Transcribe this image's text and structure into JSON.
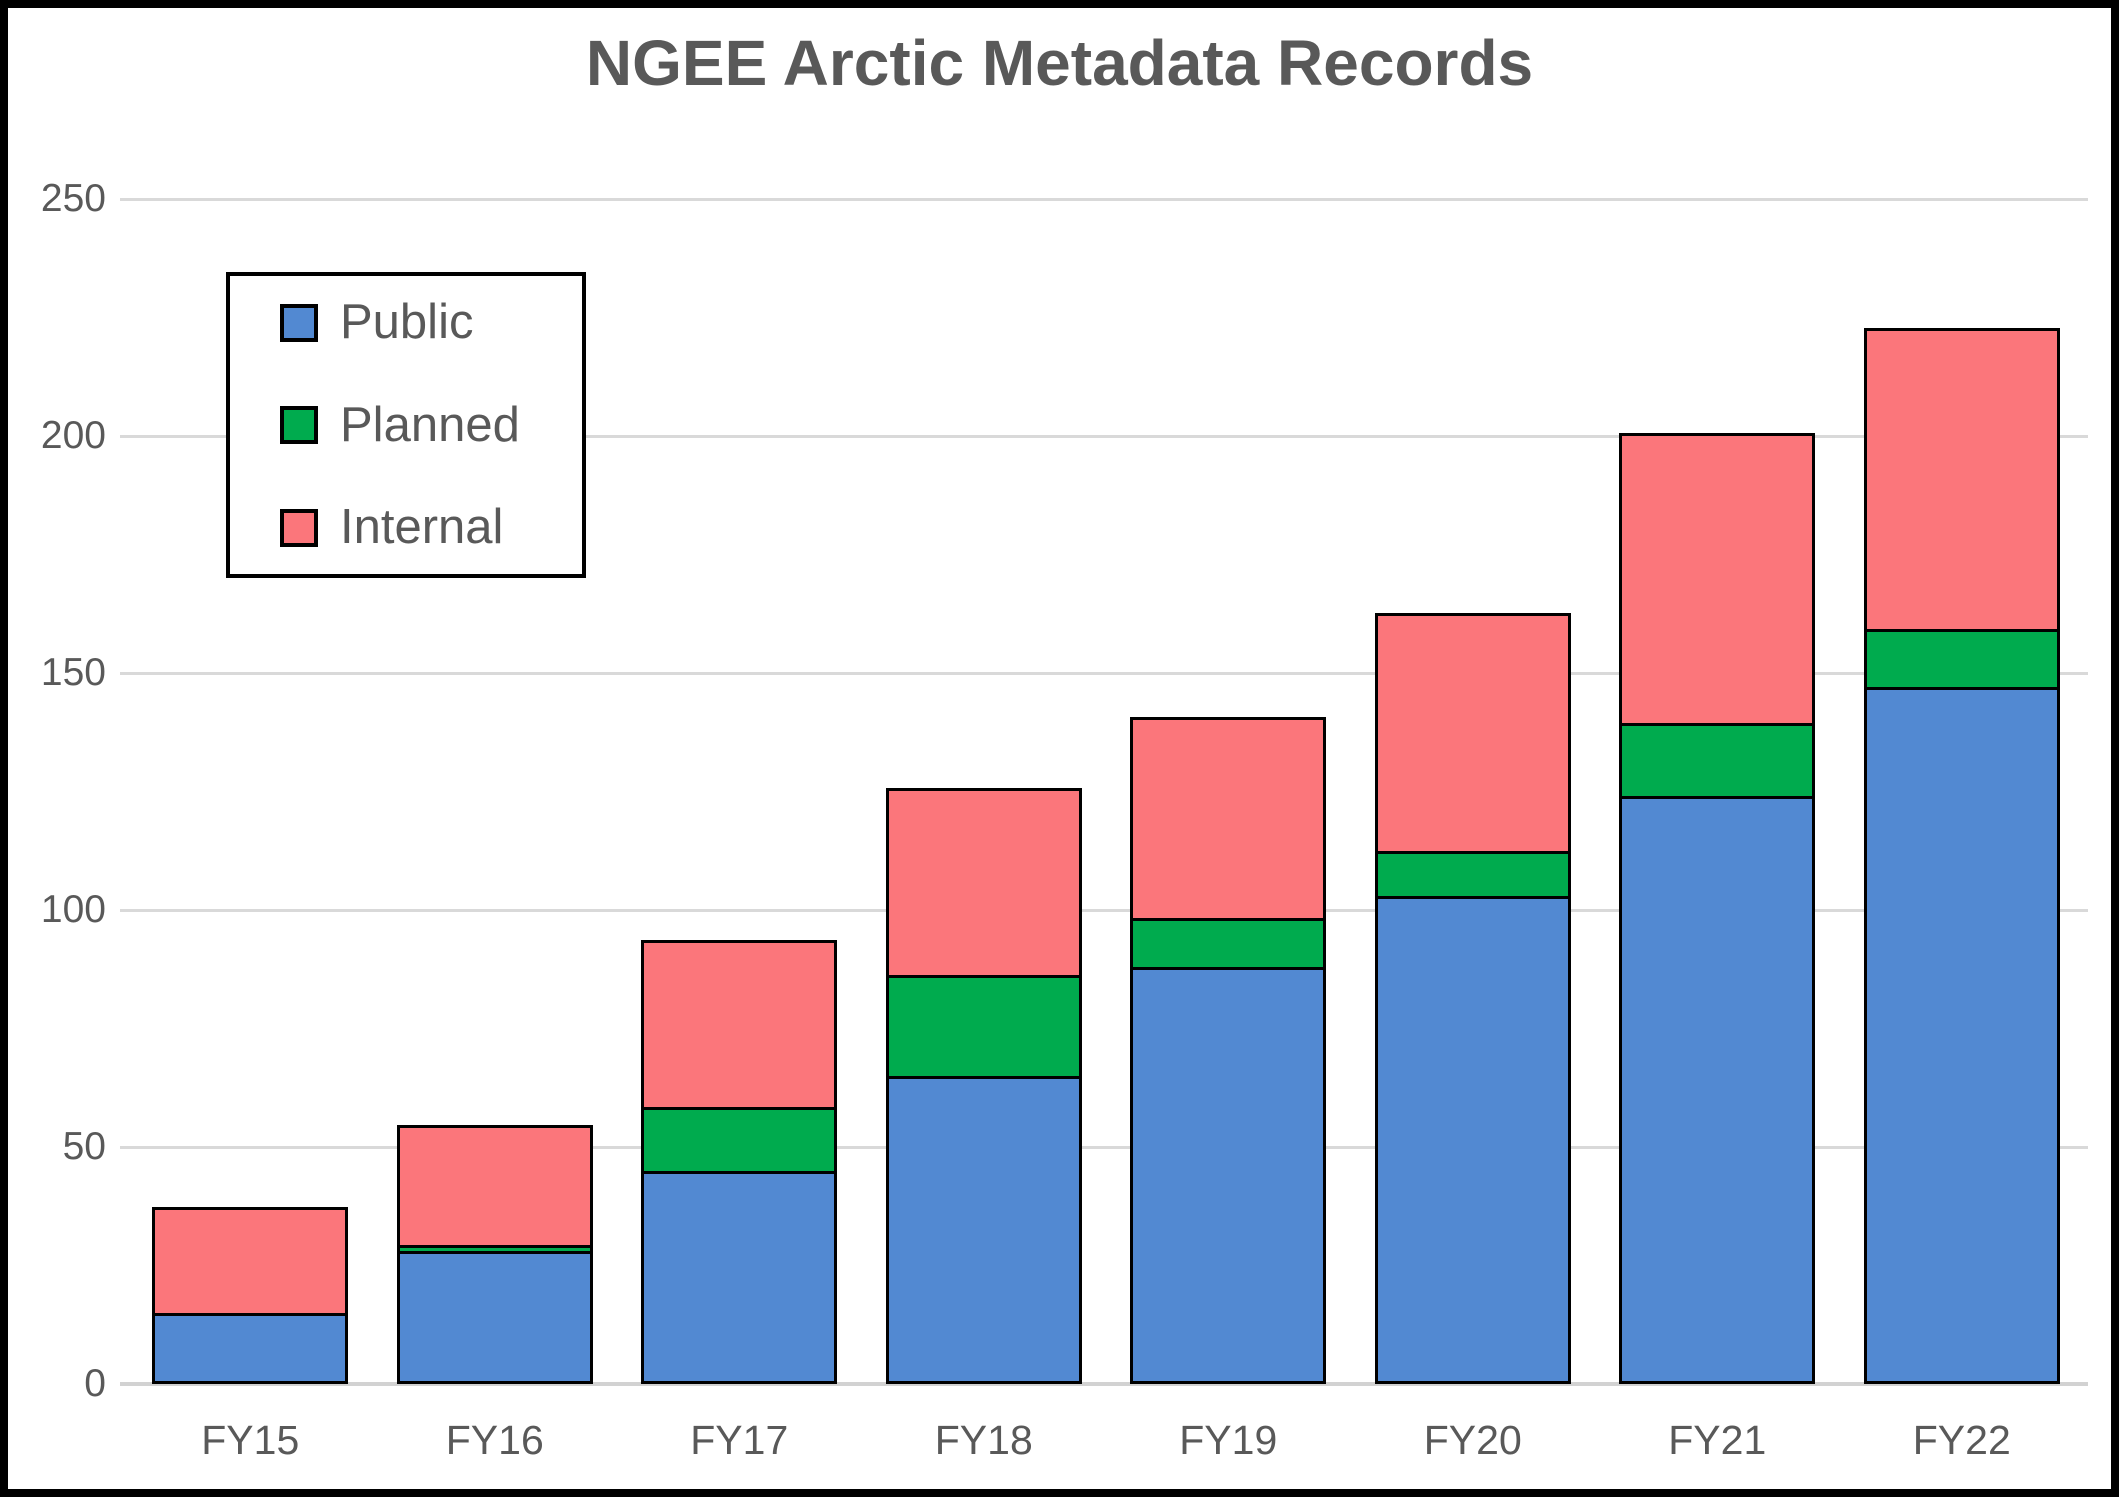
{
  "title": "NGEE Arctic Metadata Records",
  "colors": {
    "public": "#5289D2",
    "planned": "#00AB4E",
    "internal": "#FB767B",
    "text": "#595959",
    "gridline": "#D9D9D9",
    "bar_border": "#000000"
  },
  "legend": {
    "items": [
      "Public",
      "Planned",
      "Internal"
    ]
  },
  "chart_data": {
    "type": "bar",
    "stacked": true,
    "title": "NGEE Arctic Metadata Records",
    "categories": [
      "FY15",
      "FY16",
      "FY17",
      "FY18",
      "FY19",
      "FY20",
      "FY21",
      "FY22"
    ],
    "series": [
      {
        "name": "Public",
        "color": "#5289D2",
        "values": [
          15,
          28,
          45,
          65,
          88,
          103,
          124,
          147
        ]
      },
      {
        "name": "Planned",
        "color": "#00AB4E",
        "values": [
          0,
          2,
          14,
          22,
          11,
          10,
          16,
          13
        ]
      },
      {
        "name": "Internal",
        "color": "#FB767B",
        "values": [
          23,
          26,
          36,
          40,
          43,
          51,
          62,
          64
        ]
      }
    ],
    "totals": [
      38,
      56,
      95,
      127,
      142,
      164,
      202,
      224
    ],
    "xlabel": "",
    "ylabel": "",
    "ylim": [
      0,
      250
    ],
    "yticks": [
      0,
      50,
      100,
      150,
      200,
      250
    ],
    "grid": true,
    "legend_position": "upper-left"
  }
}
